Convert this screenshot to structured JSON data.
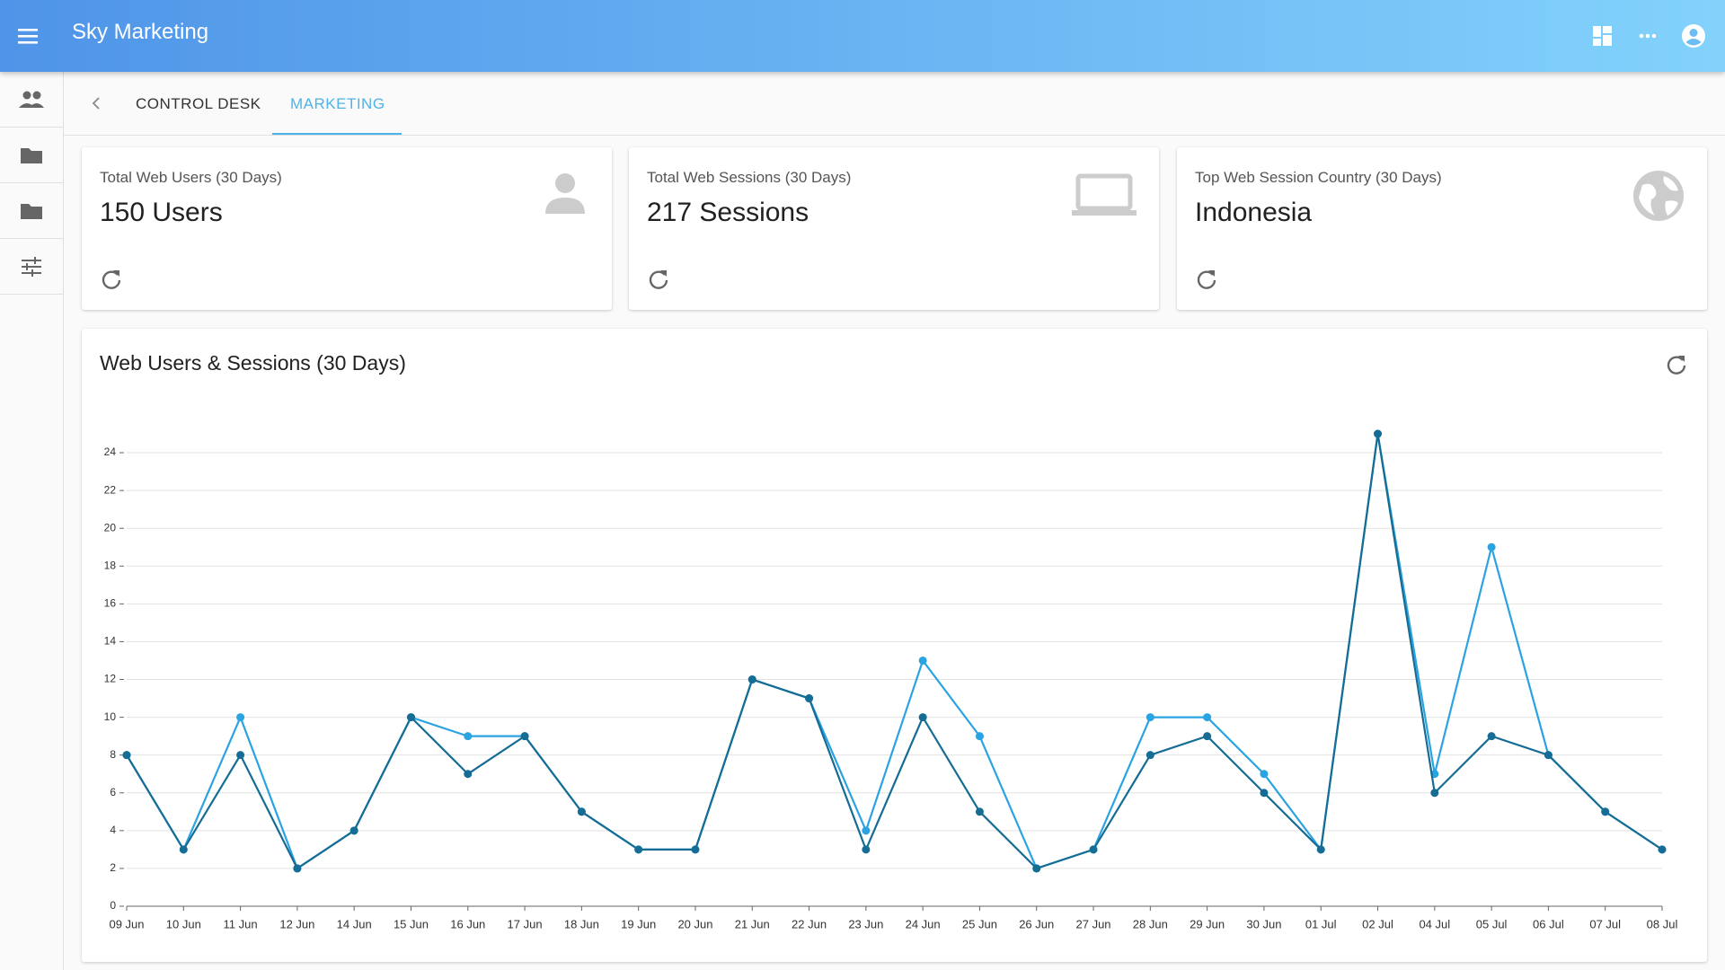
{
  "app_bar": {
    "title": "Sky Marketing"
  },
  "tabs": [
    "CONTROL DESK",
    "MARKETING"
  ],
  "cards": [
    {
      "label": "Total Web Users (30 Days)",
      "value": "150 Users"
    },
    {
      "label": "Total Web Sessions (30 Days)",
      "value": "217 Sessions"
    },
    {
      "label": "Top Web Session Country (30 Days)",
      "value": "Indonesia"
    }
  ],
  "chart_data": {
    "type": "line",
    "title": "Web Users & Sessions (30 Days)",
    "categories": [
      "09 Jun",
      "10 Jun",
      "11 Jun",
      "12 Jun",
      "14 Jun",
      "15 Jun",
      "16 Jun",
      "17 Jun",
      "18 Jun",
      "19 Jun",
      "20 Jun",
      "21 Jun",
      "22 Jun",
      "23 Jun",
      "24 Jun",
      "25 Jun",
      "26 Jun",
      "27 Jun",
      "28 Jun",
      "29 Jun",
      "30 Jun",
      "01 Jul",
      "02 Jul",
      "04 Jul",
      "05 Jul",
      "06 Jul",
      "07 Jul",
      "08 Jul"
    ],
    "series": [
      {
        "color": "#2aa3e2",
        "values": [
          8,
          3,
          10,
          2,
          4,
          10,
          9,
          9,
          5,
          3,
          3,
          12,
          11,
          4,
          13,
          9,
          2,
          3,
          10,
          10,
          7,
          3,
          25,
          7,
          19,
          8,
          5,
          3
        ]
      },
      {
        "color": "#156c94",
        "values": [
          8,
          3,
          8,
          2,
          4,
          10,
          7,
          9,
          5,
          3,
          3,
          12,
          11,
          3,
          10,
          5,
          2,
          3,
          8,
          9,
          6,
          3,
          25,
          6,
          9,
          8,
          5,
          3
        ]
      }
    ],
    "ylim": [
      0,
      25
    ],
    "yticks": [
      0,
      2,
      4,
      6,
      8,
      10,
      12,
      14,
      16,
      18,
      20,
      22,
      24
    ],
    "grid": true
  }
}
